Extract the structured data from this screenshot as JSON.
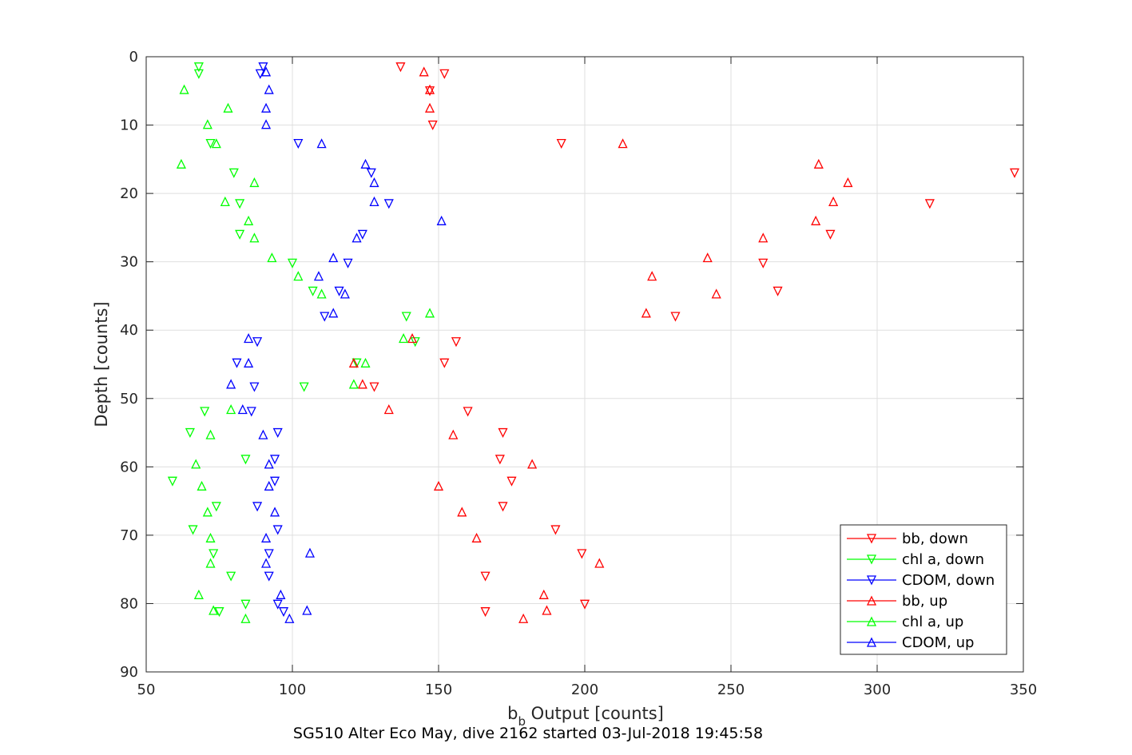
{
  "chart_data": {
    "type": "scatter",
    "xlabel_main": "b",
    "xlabel_sub": "b",
    "xlabel_rest": " Output [counts]",
    "ylabel": "Depth [counts]",
    "caption": "SG510 Alter Eco May, dive 2162 started 03-Jul-2018 19:45:58",
    "xlim": [
      50,
      350
    ],
    "ylim": [
      0,
      90
    ],
    "y_reversed": true,
    "xticks": [
      50,
      100,
      150,
      200,
      250,
      300,
      350
    ],
    "yticks": [
      0,
      10,
      20,
      30,
      40,
      50,
      60,
      70,
      80,
      90
    ],
    "grid": true,
    "legend_position": "bottom-right",
    "series": [
      {
        "name": "bb, down",
        "color": "#ff0000",
        "marker": "triangle-down",
        "points": [
          [
            137,
            1.5
          ],
          [
            152,
            2.5
          ],
          [
            147,
            5
          ],
          [
            148,
            10
          ],
          [
            192,
            12.7
          ],
          [
            347,
            17
          ],
          [
            318,
            21.5
          ],
          [
            284,
            26
          ],
          [
            261,
            30.2
          ],
          [
            266,
            34.3
          ],
          [
            231,
            38
          ],
          [
            156,
            41.7
          ],
          [
            152,
            44.8
          ],
          [
            128,
            48.3
          ],
          [
            160,
            51.9
          ],
          [
            172,
            55
          ],
          [
            171,
            58.9
          ],
          [
            175,
            62.1
          ],
          [
            172,
            65.8
          ],
          [
            190,
            69.2
          ],
          [
            199,
            72.7
          ],
          [
            166,
            76
          ],
          [
            200,
            80.1
          ],
          [
            166,
            81.2
          ]
        ]
      },
      {
        "name": "chl a, down",
        "color": "#00ff00",
        "marker": "triangle-down",
        "points": [
          [
            68,
            1.5
          ],
          [
            68,
            2.5
          ],
          [
            72,
            12.7
          ],
          [
            80,
            17
          ],
          [
            82,
            21.5
          ],
          [
            82,
            26
          ],
          [
            100,
            30.2
          ],
          [
            107,
            34.3
          ],
          [
            139,
            38
          ],
          [
            142,
            41.7
          ],
          [
            122,
            44.8
          ],
          [
            104,
            48.3
          ],
          [
            70,
            51.9
          ],
          [
            65,
            55
          ],
          [
            84,
            58.9
          ],
          [
            59,
            62.1
          ],
          [
            74,
            65.8
          ],
          [
            66,
            69.2
          ],
          [
            73,
            72.7
          ],
          [
            79,
            76
          ],
          [
            84,
            80.1
          ],
          [
            75,
            81.2
          ]
        ]
      },
      {
        "name": "CDOM, down",
        "color": "#0000ff",
        "marker": "triangle-down",
        "points": [
          [
            90,
            1.5
          ],
          [
            89,
            2.5
          ],
          [
            102,
            12.7
          ],
          [
            127,
            17
          ],
          [
            133,
            21.5
          ],
          [
            124,
            26
          ],
          [
            119,
            30.2
          ],
          [
            116,
            34.3
          ],
          [
            111,
            38
          ],
          [
            88,
            41.7
          ],
          [
            81,
            44.8
          ],
          [
            87,
            48.3
          ],
          [
            86,
            51.9
          ],
          [
            95,
            55
          ],
          [
            94,
            58.9
          ],
          [
            94,
            62.1
          ],
          [
            88,
            65.8
          ],
          [
            95,
            69.2
          ],
          [
            92,
            72.7
          ],
          [
            92,
            76
          ],
          [
            95,
            80.1
          ],
          [
            97,
            81.2
          ]
        ]
      },
      {
        "name": "bb, up",
        "color": "#ff0000",
        "marker": "triangle-up",
        "points": [
          [
            145,
            2.2
          ],
          [
            147,
            4.8
          ],
          [
            147,
            7.5
          ],
          [
            213,
            12.7
          ],
          [
            280,
            15.7
          ],
          [
            290,
            18.4
          ],
          [
            285,
            21.2
          ],
          [
            279,
            24
          ],
          [
            261,
            26.5
          ],
          [
            242,
            29.4
          ],
          [
            223,
            32.1
          ],
          [
            245,
            34.7
          ],
          [
            221,
            37.5
          ],
          [
            141,
            41.2
          ],
          [
            121,
            44.8
          ],
          [
            124,
            47.9
          ],
          [
            133,
            51.6
          ],
          [
            155,
            55.3
          ],
          [
            182,
            59.6
          ],
          [
            150,
            62.8
          ],
          [
            158,
            66.6
          ],
          [
            163,
            70.4
          ],
          [
            205,
            74.1
          ],
          [
            186,
            78.7
          ],
          [
            187,
            81
          ],
          [
            179,
            82.2
          ]
        ]
      },
      {
        "name": "chl a, up",
        "color": "#00ff00",
        "marker": "triangle-up",
        "points": [
          [
            63,
            4.8
          ],
          [
            78,
            7.5
          ],
          [
            71,
            9.9
          ],
          [
            74,
            12.7
          ],
          [
            62,
            15.7
          ],
          [
            87,
            18.4
          ],
          [
            77,
            21.2
          ],
          [
            85,
            24
          ],
          [
            87,
            26.5
          ],
          [
            93,
            29.4
          ],
          [
            102,
            32.1
          ],
          [
            110,
            34.7
          ],
          [
            147,
            37.5
          ],
          [
            138,
            41.2
          ],
          [
            125,
            44.8
          ],
          [
            121,
            47.9
          ],
          [
            79,
            51.6
          ],
          [
            72,
            55.3
          ],
          [
            67,
            59.6
          ],
          [
            69,
            62.8
          ],
          [
            71,
            66.6
          ],
          [
            72,
            70.4
          ],
          [
            72,
            74.1
          ],
          [
            68,
            78.7
          ],
          [
            73,
            81
          ],
          [
            84,
            82.2
          ]
        ]
      },
      {
        "name": "CDOM, up",
        "color": "#0000ff",
        "marker": "triangle-up",
        "points": [
          [
            91,
            2.2
          ],
          [
            92,
            4.8
          ],
          [
            91,
            7.5
          ],
          [
            91,
            9.9
          ],
          [
            110,
            12.7
          ],
          [
            125,
            15.7
          ],
          [
            128,
            18.4
          ],
          [
            128,
            21.2
          ],
          [
            151,
            24
          ],
          [
            122,
            26.5
          ],
          [
            114,
            29.4
          ],
          [
            109,
            32.1
          ],
          [
            118,
            34.7
          ],
          [
            114,
            37.5
          ],
          [
            85,
            41.2
          ],
          [
            85,
            44.8
          ],
          [
            79,
            47.9
          ],
          [
            83,
            51.6
          ],
          [
            90,
            55.3
          ],
          [
            92,
            59.6
          ],
          [
            92,
            62.8
          ],
          [
            94,
            66.6
          ],
          [
            91,
            70.4
          ],
          [
            106,
            72.6
          ],
          [
            91,
            74.1
          ],
          [
            96,
            78.7
          ],
          [
            105,
            81
          ],
          [
            99,
            82.2
          ]
        ]
      }
    ]
  }
}
